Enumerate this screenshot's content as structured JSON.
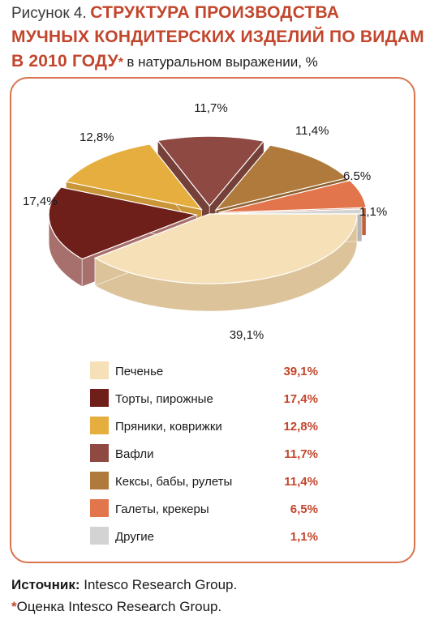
{
  "figure": {
    "label": "Рисунок 4.",
    "title_line1": "СТРУКТУРА ПРОИЗВОДСТВА",
    "title_line2": "МУЧНЫХ КОНДИТЕРСКИХ ИЗДЕЛИЙ ПО ВИДАМ",
    "title_line3": "В 2010 ГОДУ",
    "asterisk": "*",
    "units": "в натуральном выражении, %"
  },
  "chart_data": {
    "type": "pie",
    "categories": [
      "Печенье",
      "Торты, пирожные",
      "Пряники, коврижки",
      "Вафли",
      "Кексы, бабы, рулеты",
      "Галеты, крекеры",
      "Другие"
    ],
    "values": [
      39.1,
      17.4,
      12.8,
      11.7,
      11.4,
      6.5,
      1.1
    ],
    "value_labels": [
      "39,1%",
      "17,4%",
      "12,8%",
      "11,7%",
      "11,4%",
      "6.5%",
      "1,1%"
    ],
    "legend_values": [
      "39,1%",
      "17,4%",
      "12,8%",
      "11,7%",
      "11,4%",
      "6,5%",
      "1,1%"
    ],
    "colors": [
      "#f5e0b8",
      "#6e1f1a",
      "#e6ae3e",
      "#8e4a42",
      "#b07a3c",
      "#e2754c",
      "#d3d3d3"
    ],
    "side_colors": [
      "#dcc39a",
      "#a8706c",
      "#c99536",
      "#744038",
      "#8e6230",
      "#c25e3a",
      "#b5b5b5"
    ],
    "legend_placement": "bottom",
    "style": "3d-exploded"
  },
  "source": {
    "label": "Источник:",
    "text": "Intesco Research Group.",
    "note_star": "*",
    "note_text": "Оценка Intesco Research Group."
  }
}
